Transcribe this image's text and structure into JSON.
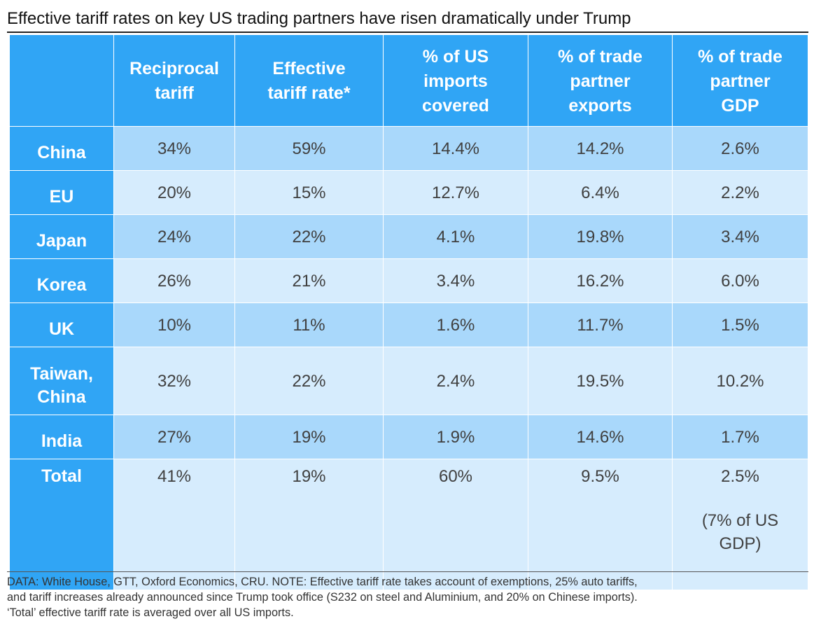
{
  "title": "Effective tariff rates on key US trading partners have risen dramatically under Trump",
  "colors": {
    "header_bg": "#30a5f5",
    "row_dark": "#a9d8fb",
    "row_light": "#d6ecfd"
  },
  "chart_data": {
    "type": "table",
    "title": "Effective tariff rates on key US trading partners have risen dramatically under Trump",
    "columns": [
      "",
      "Reciprocal tariff",
      "Effective tariff rate*",
      "% of US imports covered",
      "% of trade partner exports",
      "% of trade partner GDP"
    ],
    "column_lines": [
      [
        ""
      ],
      [
        "Reciprocal",
        "tariff"
      ],
      [
        "Effective",
        "tariff rate*"
      ],
      [
        "% of US",
        "imports",
        "covered"
      ],
      [
        "% of trade",
        "partner",
        "exports"
      ],
      [
        "% of trade",
        "partner",
        "GDP"
      ]
    ],
    "rows": [
      {
        "label": "China",
        "values": [
          "34%",
          "59%",
          "14.4%",
          "14.2%",
          "2.6%"
        ]
      },
      {
        "label": "EU",
        "values": [
          "20%",
          "15%",
          "12.7%",
          "6.4%",
          "2.2%"
        ]
      },
      {
        "label": "Japan",
        "values": [
          "24%",
          "22%",
          "4.1%",
          "19.8%",
          "3.4%"
        ]
      },
      {
        "label": "Korea",
        "values": [
          "26%",
          "21%",
          "3.4%",
          "16.2%",
          "6.0%"
        ]
      },
      {
        "label": "UK",
        "values": [
          "10%",
          "11%",
          "1.6%",
          "11.7%",
          "1.5%"
        ]
      },
      {
        "label": "Taiwan, China",
        "label_lines": [
          "Taiwan,",
          "China"
        ],
        "values": [
          "32%",
          "22%",
          "2.4%",
          "19.5%",
          "10.2%"
        ]
      },
      {
        "label": "India",
        "values": [
          "27%",
          "19%",
          "1.9%",
          "14.6%",
          "1.7%"
        ]
      },
      {
        "label": "Total",
        "values": [
          "41%",
          "19%",
          "60%",
          "9.5%",
          "2.5%"
        ],
        "note_lines": [
          "(7% of US",
          "GDP)"
        ]
      }
    ]
  },
  "footnote": [
    "DATA: White House, GTT, Oxford Economics, CRU. NOTE: Effective tariff rate takes account of exemptions, 25% auto tariffs,",
    "and tariff increases already announced since Trump took office (S232 on steel and Aluminium, and 20% on Chinese imports).",
    "‘Total’ effective tariff rate is averaged over all US imports."
  ]
}
